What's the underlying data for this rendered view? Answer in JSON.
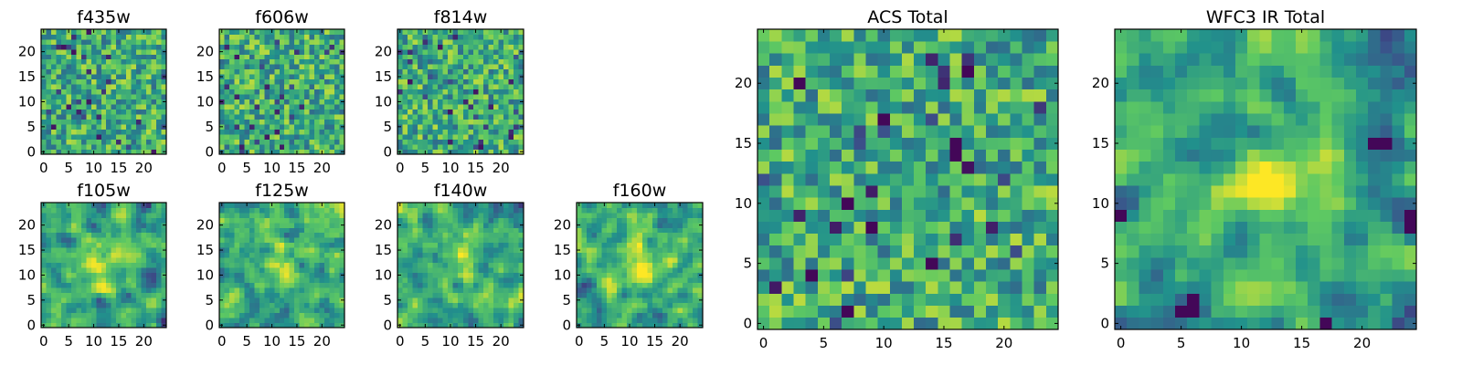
{
  "figure": {
    "colormap": "viridis",
    "colormap_stops": [
      "#440154",
      "#3b528b",
      "#21918c",
      "#5ec962",
      "#fde725"
    ],
    "frame_color": "#000000",
    "background": "#ffffff"
  },
  "chart_data": [
    {
      "type": "heatmap",
      "title": "f435w",
      "grid": [
        25,
        25
      ],
      "xlim": [
        -0.5,
        24.5
      ],
      "ylim": [
        -0.5,
        24.5
      ],
      "xticks": [
        0,
        5,
        10,
        15,
        20
      ],
      "yticks": [
        0,
        5,
        10,
        15,
        20
      ],
      "noise_seed": 11,
      "smooth": 0,
      "blobs": []
    },
    {
      "type": "heatmap",
      "title": "f606w",
      "grid": [
        25,
        25
      ],
      "xlim": [
        -0.5,
        24.5
      ],
      "ylim": [
        -0.5,
        24.5
      ],
      "xticks": [
        0,
        5,
        10,
        15,
        20
      ],
      "yticks": [
        0,
        5,
        10,
        15,
        20
      ],
      "noise_seed": 23,
      "smooth": 0,
      "blobs": []
    },
    {
      "type": "heatmap",
      "title": "f814w",
      "grid": [
        25,
        25
      ],
      "xlim": [
        -0.5,
        24.5
      ],
      "ylim": [
        -0.5,
        24.5
      ],
      "xticks": [
        0,
        5,
        10,
        15,
        20
      ],
      "yticks": [
        0,
        5,
        10,
        15,
        20
      ],
      "noise_seed": 37,
      "smooth": 0,
      "blobs": []
    },
    {
      "type": "heatmap",
      "title": "f105w",
      "grid": [
        25,
        25
      ],
      "xlim": [
        -0.5,
        24.5
      ],
      "ylim": [
        -0.5,
        24.5
      ],
      "xticks": [
        0,
        5,
        10,
        15,
        20
      ],
      "yticks": [
        0,
        5,
        10,
        15,
        20
      ],
      "noise_seed": 41,
      "smooth": 1,
      "blobs": [
        {
          "x": 12,
          "y": 12,
          "amp": 0.3,
          "sigma": 3
        },
        {
          "x": 22,
          "y": 10,
          "amp": -0.3,
          "sigma": 2
        }
      ]
    },
    {
      "type": "heatmap",
      "title": "f125w",
      "grid": [
        25,
        25
      ],
      "xlim": [
        -0.5,
        24.5
      ],
      "ylim": [
        -0.5,
        24.5
      ],
      "xticks": [
        0,
        5,
        10,
        15,
        20
      ],
      "yticks": [
        0,
        5,
        10,
        15,
        20
      ],
      "noise_seed": 53,
      "smooth": 1,
      "blobs": [
        {
          "x": 12,
          "y": 12,
          "amp": 0.2,
          "sigma": 3
        }
      ]
    },
    {
      "type": "heatmap",
      "title": "f140w",
      "grid": [
        25,
        25
      ],
      "xlim": [
        -0.5,
        24.5
      ],
      "ylim": [
        -0.5,
        24.5
      ],
      "xticks": [
        0,
        5,
        10,
        15,
        20
      ],
      "yticks": [
        0,
        5,
        10,
        15,
        20
      ],
      "noise_seed": 67,
      "smooth": 1,
      "blobs": [
        {
          "x": 12,
          "y": 12,
          "amp": 0.2,
          "sigma": 3
        }
      ]
    },
    {
      "type": "heatmap",
      "title": "f160w",
      "grid": [
        25,
        25
      ],
      "xlim": [
        -0.5,
        24.5
      ],
      "ylim": [
        -0.5,
        24.5
      ],
      "xticks": [
        0,
        5,
        10,
        15,
        20
      ],
      "yticks": [
        0,
        5,
        10,
        15,
        20
      ],
      "noise_seed": 79,
      "smooth": 1,
      "blobs": [
        {
          "x": 12,
          "y": 12,
          "amp": 0.3,
          "sigma": 3
        }
      ]
    },
    {
      "type": "heatmap",
      "title": "ACS Total",
      "grid": [
        25,
        25
      ],
      "xlim": [
        -0.5,
        24.5
      ],
      "ylim": [
        -0.5,
        24.5
      ],
      "xticks": [
        0,
        5,
        10,
        15,
        20
      ],
      "yticks": [
        0,
        5,
        10,
        15,
        20
      ],
      "noise_seed": 97,
      "smooth": 0,
      "blobs": [],
      "dark_pixels": [
        [
          3,
          20
        ],
        [
          17,
          21
        ],
        [
          10,
          17
        ],
        [
          16,
          14
        ],
        [
          16,
          15
        ],
        [
          7,
          10
        ],
        [
          9,
          8
        ],
        [
          7,
          1
        ],
        [
          14,
          5
        ],
        [
          4,
          4
        ]
      ]
    },
    {
      "type": "heatmap",
      "title": "WFC3 IR Total",
      "grid": [
        25,
        25
      ],
      "xlim": [
        -0.5,
        24.5
      ],
      "ylim": [
        -0.5,
        24.5
      ],
      "xticks": [
        0,
        5,
        10,
        15,
        20
      ],
      "yticks": [
        0,
        5,
        10,
        15,
        20
      ],
      "noise_seed": 131,
      "smooth": 1,
      "blobs": [
        {
          "x": 12,
          "y": 12,
          "amp": 0.45,
          "sigma": 2.2
        },
        {
          "x": 22,
          "y": 15,
          "amp": -0.4,
          "sigma": 1.5
        },
        {
          "x": 6,
          "y": 1,
          "amp": -0.45,
          "sigma": 1.2
        },
        {
          "x": 24,
          "y": 9,
          "amp": -0.4,
          "sigma": 1.3
        },
        {
          "x": 1,
          "y": 10,
          "amp": -0.3,
          "sigma": 1.3
        }
      ],
      "dark_pixels": [
        [
          5,
          1
        ],
        [
          6,
          1
        ],
        [
          6,
          2
        ],
        [
          17,
          0
        ],
        [
          21,
          15
        ],
        [
          22,
          15
        ],
        [
          24,
          8
        ],
        [
          24,
          9
        ],
        [
          0,
          9
        ]
      ]
    }
  ]
}
